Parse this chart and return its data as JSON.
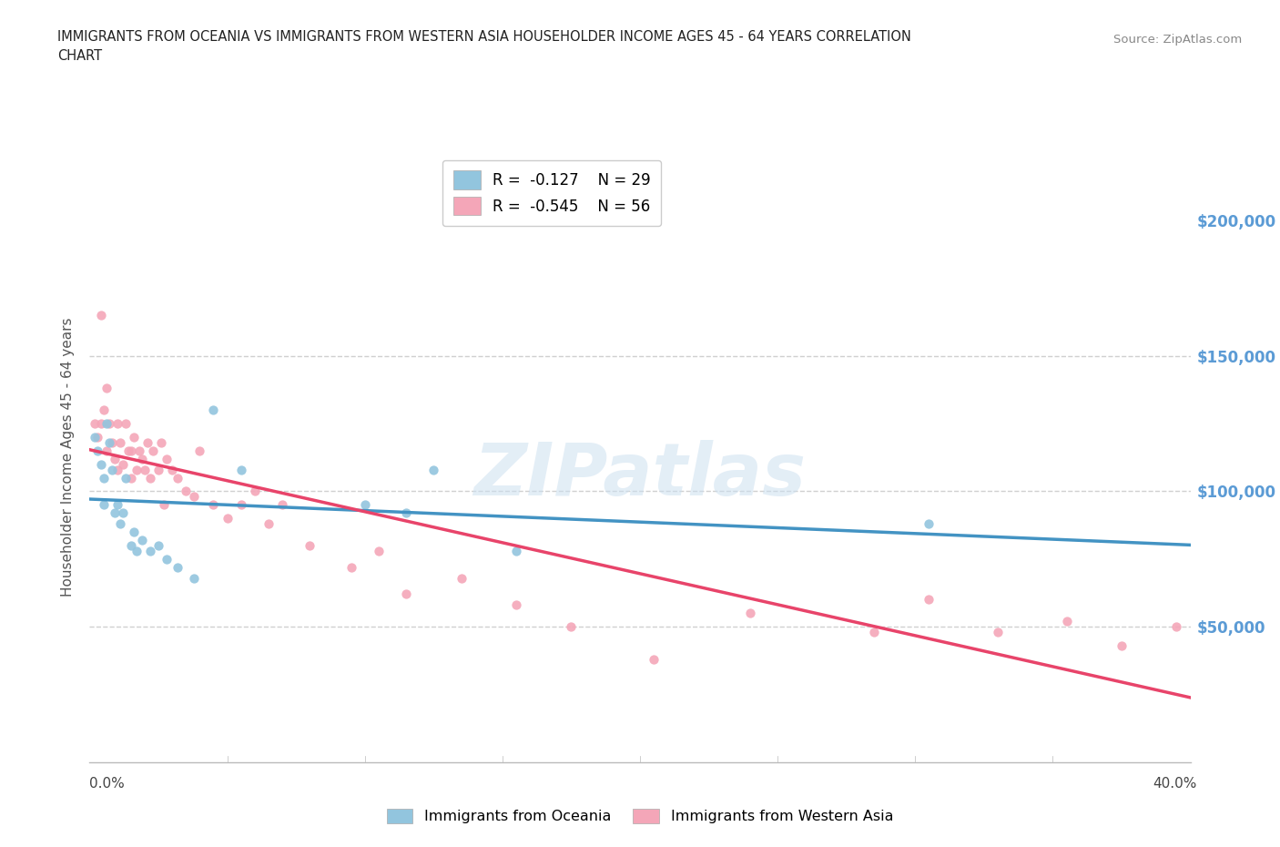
{
  "title_line1": "IMMIGRANTS FROM OCEANIA VS IMMIGRANTS FROM WESTERN ASIA HOUSEHOLDER INCOME AGES 45 - 64 YEARS CORRELATION",
  "title_line2": "CHART",
  "source": "Source: ZipAtlas.com",
  "ylabel": "Householder Income Ages 45 - 64 years",
  "yticks": [
    0,
    50000,
    100000,
    150000,
    200000
  ],
  "ytick_labels": [
    "",
    "$50,000",
    "$100,000",
    "$150,000",
    "$200,000"
  ],
  "xmin": 0.0,
  "xmax": 0.4,
  "ymin": 0,
  "ymax": 225000,
  "oceania_color": "#92c5de",
  "western_asia_color": "#f4a6b8",
  "oceania_line_color": "#4393c3",
  "western_asia_line_color": "#e8446a",
  "oceania_R": -0.127,
  "oceania_N": 29,
  "western_asia_R": -0.545,
  "western_asia_N": 56,
  "watermark": "ZIPatlas",
  "oceania_x": [
    0.002,
    0.003,
    0.004,
    0.005,
    0.005,
    0.006,
    0.007,
    0.008,
    0.009,
    0.01,
    0.011,
    0.012,
    0.013,
    0.015,
    0.016,
    0.017,
    0.019,
    0.022,
    0.025,
    0.028,
    0.032,
    0.038,
    0.045,
    0.055,
    0.1,
    0.115,
    0.125,
    0.155,
    0.305
  ],
  "oceania_y": [
    120000,
    115000,
    110000,
    105000,
    95000,
    125000,
    118000,
    108000,
    92000,
    95000,
    88000,
    92000,
    105000,
    80000,
    85000,
    78000,
    82000,
    78000,
    80000,
    75000,
    72000,
    68000,
    130000,
    108000,
    95000,
    92000,
    108000,
    78000,
    88000
  ],
  "western_asia_x": [
    0.002,
    0.003,
    0.004,
    0.004,
    0.005,
    0.006,
    0.006,
    0.007,
    0.008,
    0.009,
    0.01,
    0.01,
    0.011,
    0.012,
    0.013,
    0.014,
    0.015,
    0.015,
    0.016,
    0.017,
    0.018,
    0.019,
    0.02,
    0.021,
    0.022,
    0.023,
    0.025,
    0.026,
    0.027,
    0.028,
    0.03,
    0.032,
    0.035,
    0.038,
    0.04,
    0.045,
    0.05,
    0.055,
    0.06,
    0.065,
    0.07,
    0.08,
    0.095,
    0.105,
    0.115,
    0.135,
    0.155,
    0.175,
    0.205,
    0.24,
    0.285,
    0.305,
    0.33,
    0.355,
    0.375,
    0.395
  ],
  "western_asia_y": [
    125000,
    120000,
    125000,
    165000,
    130000,
    115000,
    138000,
    125000,
    118000,
    112000,
    125000,
    108000,
    118000,
    110000,
    125000,
    115000,
    115000,
    105000,
    120000,
    108000,
    115000,
    112000,
    108000,
    118000,
    105000,
    115000,
    108000,
    118000,
    95000,
    112000,
    108000,
    105000,
    100000,
    98000,
    115000,
    95000,
    90000,
    95000,
    100000,
    88000,
    95000,
    80000,
    72000,
    78000,
    62000,
    68000,
    58000,
    50000,
    38000,
    55000,
    48000,
    60000,
    48000,
    52000,
    43000,
    50000
  ],
  "grid_color": "#d0d0d0",
  "background_color": "#ffffff"
}
